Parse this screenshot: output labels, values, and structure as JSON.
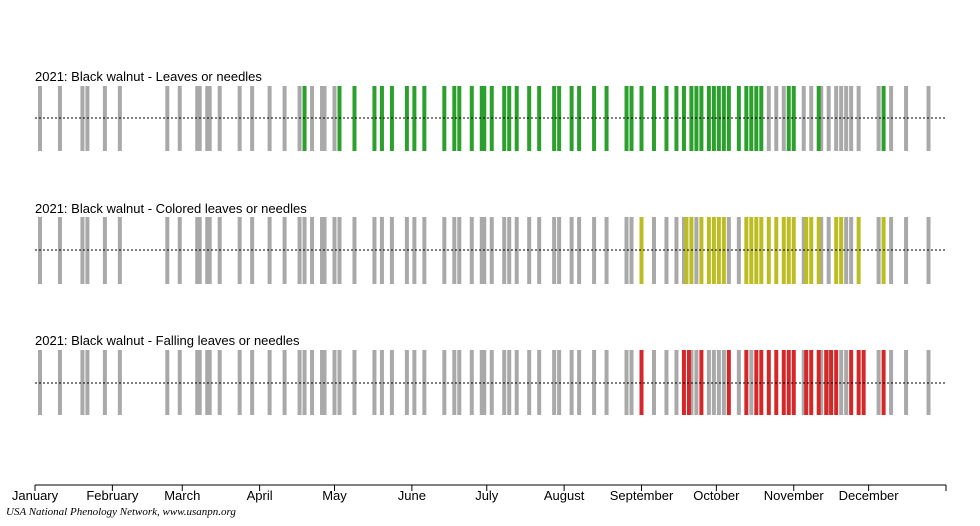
{
  "chart_data": {
    "type": "phenology-timeline",
    "year": 2021,
    "x_domain_doy": [
      1,
      366
    ],
    "months": [
      "January",
      "February",
      "March",
      "April",
      "May",
      "June",
      "July",
      "August",
      "September",
      "October",
      "November",
      "December"
    ],
    "colors": {
      "no": "#a9a9a9",
      "leaves": "#2ca02c",
      "colored": "#bcbd22",
      "falling": "#d62728"
    },
    "observation_days": [
      3,
      11,
      20,
      22,
      29,
      35,
      54,
      59,
      66,
      67,
      70,
      71,
      75,
      83,
      88,
      95,
      101,
      107,
      109,
      112,
      116,
      117,
      121,
      123,
      129,
      137,
      140,
      144,
      150,
      153,
      157,
      165,
      169,
      171,
      176,
      180,
      181,
      184,
      189,
      191,
      194,
      199,
      203,
      209,
      211,
      216,
      219,
      225,
      230,
      238,
      240,
      244,
      249,
      254,
      258,
      261,
      264,
      266,
      268,
      271,
      273,
      275,
      277,
      279,
      283,
      286,
      288,
      290,
      292,
      295,
      298,
      301,
      303,
      305,
      309,
      312,
      315,
      316,
      319,
      322,
      324,
      326,
      328,
      331,
      339,
      341,
      344,
      350,
      359
    ],
    "panels": [
      {
        "title": "2021: Black walnut - Leaves or needles",
        "color_key": "leaves",
        "yes_days": [
          109,
          123,
          129,
          137,
          140,
          144,
          150,
          153,
          157,
          165,
          169,
          171,
          176,
          180,
          181,
          184,
          189,
          191,
          194,
          199,
          203,
          209,
          211,
          216,
          219,
          225,
          230,
          238,
          240,
          244,
          249,
          254,
          258,
          261,
          264,
          266,
          268,
          271,
          273,
          275,
          277,
          279,
          283,
          286,
          288,
          290,
          292,
          303,
          305,
          315,
          341
        ]
      },
      {
        "title": "2021: Black walnut - Colored leaves or needles",
        "color_key": "colored",
        "yes_days": [
          244,
          262,
          264,
          268,
          271,
          273,
          275,
          277,
          286,
          288,
          290,
          292,
          295,
          298,
          301,
          303,
          305,
          310,
          312,
          315,
          322,
          324,
          331,
          341
        ]
      },
      {
        "title": "2021: Black walnut - Falling leaves or needles",
        "color_key": "falling",
        "yes_days": [
          244,
          261,
          263,
          268,
          279,
          286,
          290,
          292,
          295,
          298,
          301,
          303,
          305,
          310,
          312,
          315,
          318,
          320,
          322,
          328,
          331,
          333,
          341
        ]
      }
    ]
  },
  "credit": "USA National Phenology Network, www.usanpn.org"
}
